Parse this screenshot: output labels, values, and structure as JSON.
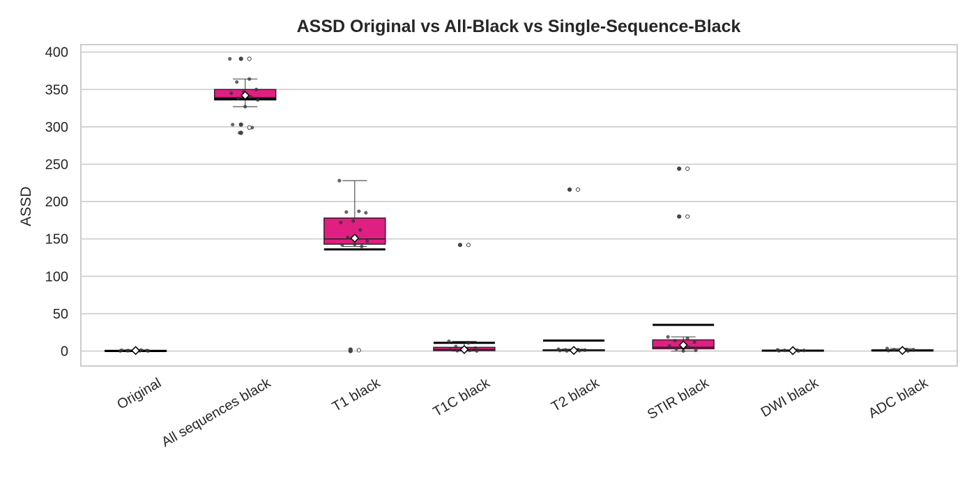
{
  "chart_data": {
    "type": "box",
    "title": "ASSD Original vs All-Black vs Single-Sequence-Black",
    "xlabel": "",
    "ylabel": "ASSD",
    "ylim": [
      -20,
      410
    ],
    "yticks": [
      0,
      50,
      100,
      150,
      200,
      250,
      300,
      350,
      400
    ],
    "grid": true,
    "colors": {
      "box": "#e01f82",
      "grid": "#cccccc",
      "points": "#333333",
      "mean_marker": "#ffffff"
    },
    "categories": [
      "Original",
      "All sequences black",
      "T1 black",
      "T1C black",
      "T2 black",
      "STIR black",
      "DWI black",
      "ADC black"
    ],
    "boxes": [
      {
        "q1": 0.3,
        "median": 0.6,
        "q3": 1.0,
        "whisker_low": 0.0,
        "whisker_high": 1.5,
        "mean": 0.7,
        "ref_line": 0.0,
        "points": [
          0.2,
          0.4,
          0.5,
          0.7,
          0.9,
          1.1,
          1.4,
          0.6,
          0.3
        ]
      },
      {
        "q1": 336,
        "median": 339,
        "q3": 350,
        "whisker_low": 327,
        "whisker_high": 364,
        "mean": 342,
        "ref_line": 337,
        "points": [
          391,
          364,
          360,
          350,
          347,
          345,
          340,
          338,
          336,
          327,
          303,
          299,
          292
        ],
        "outliers": [
          391,
          391,
          303,
          299,
          292
        ]
      },
      {
        "q1": 143,
        "median": 150,
        "q3": 178,
        "whisker_low": 140,
        "whisker_high": 228,
        "mean": 151,
        "ref_line": 136,
        "points": [
          228,
          187,
          186,
          185,
          174,
          172,
          162,
          152,
          147,
          143,
          142,
          140
        ],
        "outliers": [
          2,
          1,
          0
        ]
      },
      {
        "q1": 0.5,
        "median": 2.0,
        "q3": 5.0,
        "whisker_low": 0.0,
        "whisker_high": 13.0,
        "mean": 2.0,
        "ref_line": 11.0,
        "points": [
          13,
          11,
          6,
          4,
          3,
          2,
          1,
          0.5,
          0.2
        ],
        "outliers": [
          142,
          142
        ]
      },
      {
        "q1": 0.3,
        "median": 1.0,
        "q3": 1.8,
        "whisker_low": 0.0,
        "whisker_high": 2.5,
        "mean": 0.8,
        "ref_line": 14.0,
        "points": [
          2.5,
          2,
          1.6,
          1.2,
          1,
          0.7,
          0.5,
          0.3
        ],
        "outliers": [
          216,
          216
        ]
      },
      {
        "q1": 3.0,
        "median": 5.0,
        "q3": 15.0,
        "whisker_low": 0.0,
        "whisker_high": 19.0,
        "mean": 8.0,
        "ref_line": 35.0,
        "points": [
          19,
          17,
          14,
          12,
          9,
          7,
          5,
          3,
          1,
          0.2
        ],
        "outliers": [
          244,
          244,
          180,
          180
        ]
      },
      {
        "q1": 0.3,
        "median": 0.7,
        "q3": 1.2,
        "whisker_low": 0.0,
        "whisker_high": 1.6,
        "mean": 0.6,
        "ref_line": 0.5,
        "points": [
          1.6,
          1.3,
          1,
          0.8,
          0.6,
          0.4,
          0.2
        ]
      },
      {
        "q1": 0.4,
        "median": 0.9,
        "q3": 1.6,
        "whisker_low": 0.0,
        "whisker_high": 3.5,
        "mean": 0.8,
        "ref_line": 0.8,
        "points": [
          3.5,
          2.2,
          1.6,
          1.2,
          0.9,
          0.6,
          0.3
        ]
      }
    ]
  }
}
